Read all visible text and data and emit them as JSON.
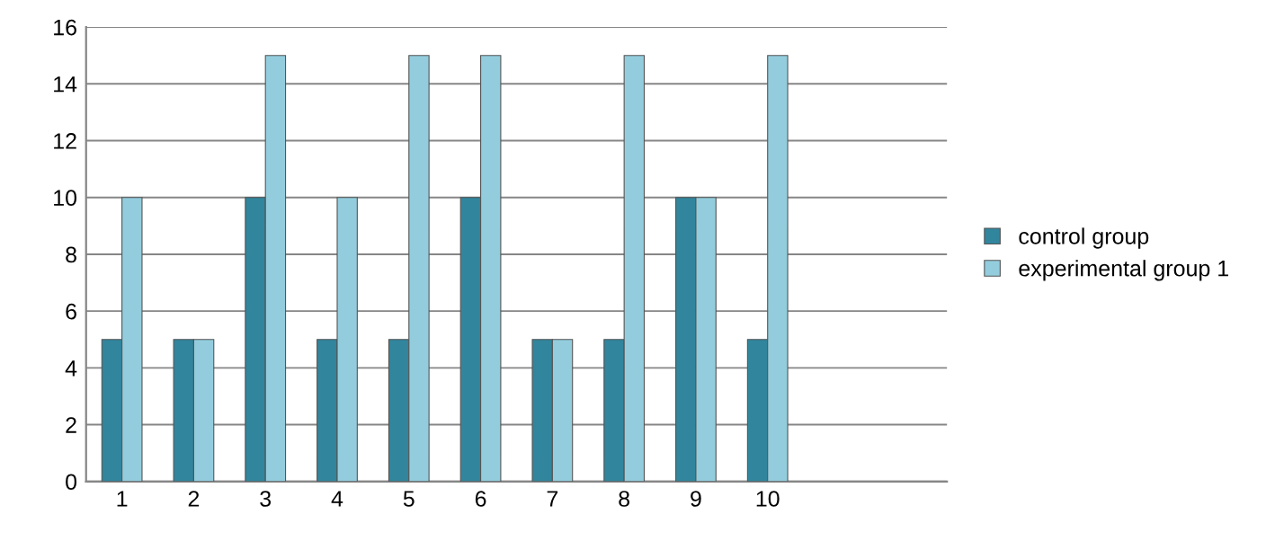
{
  "chart_data": {
    "type": "bar",
    "categories": [
      "1",
      "2",
      "3",
      "4",
      "5",
      "6",
      "7",
      "8",
      "9",
      "10",
      null,
      null
    ],
    "series": [
      {
        "name": "control group",
        "color": "#31859c",
        "values": [
          5,
          5,
          10,
          5,
          5,
          10,
          5,
          5,
          10,
          5,
          null,
          null
        ]
      },
      {
        "name": "experimental group 1",
        "color": "#93cddd",
        "values": [
          10,
          5,
          15,
          10,
          15,
          15,
          5,
          15,
          10,
          15,
          null,
          null
        ]
      }
    ],
    "ylim": [
      0,
      16
    ],
    "yticks": [
      0,
      2,
      4,
      6,
      8,
      10,
      12,
      14,
      16
    ],
    "grid": "y",
    "legend": "right"
  }
}
